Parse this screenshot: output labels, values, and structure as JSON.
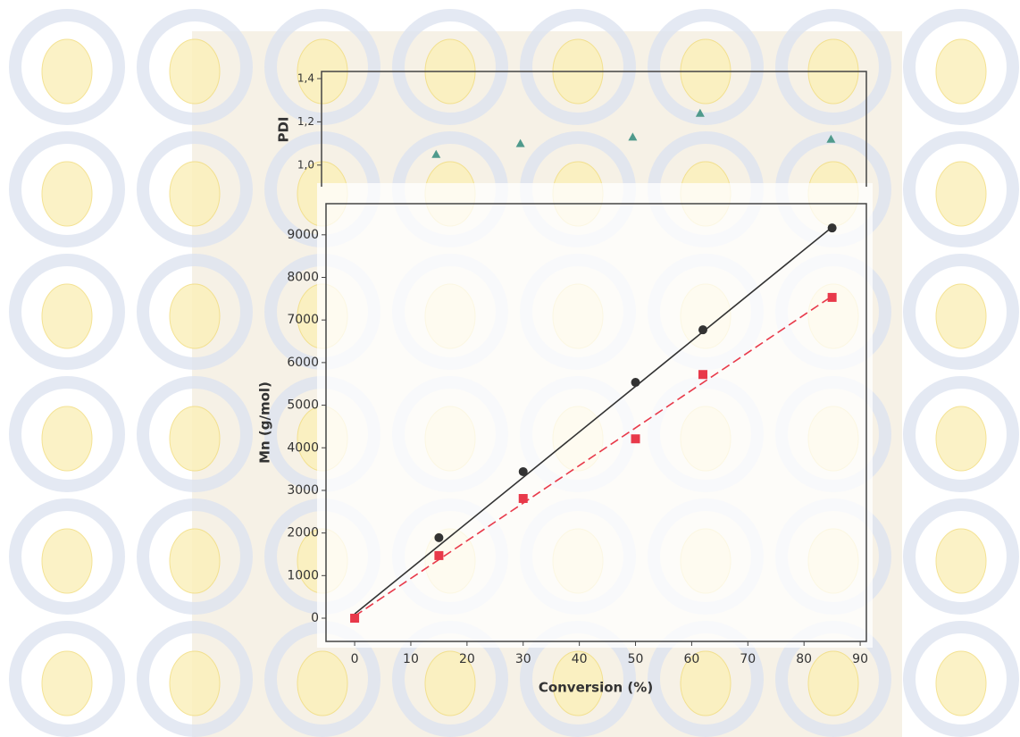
{
  "chart_data": [
    {
      "type": "scatter",
      "ylabel": "PDI",
      "xlim": [
        -5.9,
        91.1
      ],
      "ylim": [
        0.9,
        1.433
      ],
      "yticks": [
        {
          "value": 1.0,
          "label": "1,0"
        },
        {
          "value": 1.2,
          "label": "1,2"
        },
        {
          "value": 1.4,
          "label": "1,4"
        }
      ],
      "series": [
        {
          "color": "#4f9a8c",
          "marker": "triangle",
          "x": [
            14.5,
            29.5,
            49.5,
            61.5,
            84.8
          ],
          "values": [
            1.05,
            1.1,
            1.13,
            1.24,
            1.12
          ]
        }
      ]
    },
    {
      "type": "scatter",
      "xlabel": "Conversion (%)",
      "ylabel": "Mn (g/mol)",
      "xlim": [
        -5.1,
        91.1
      ],
      "ylim": [
        -545,
        9730
      ],
      "xticks": [
        0,
        10,
        20,
        30,
        40,
        50,
        60,
        70,
        80,
        90
      ],
      "yticks": [
        0,
        1000,
        2000,
        3000,
        4000,
        5000,
        6000,
        7000,
        8000,
        9000
      ],
      "series": [
        {
          "color": "#333333",
          "marker": "circle",
          "x": [
            15,
            30,
            50,
            62,
            85
          ],
          "values": [
            1890,
            3440,
            5535,
            6770,
            9160
          ]
        },
        {
          "color": "#e8394a",
          "marker": "square",
          "x": [
            0,
            15,
            30,
            50,
            62,
            85
          ],
          "values": [
            0,
            1470,
            2810,
            4210,
            5720,
            7530
          ]
        }
      ],
      "trendlines": [
        {
          "color": "#333333",
          "dash": false,
          "x": [
            0,
            85
          ],
          "values": [
            100,
            9180
          ]
        },
        {
          "color": "#e8394a",
          "dash": true,
          "x": [
            0,
            85
          ],
          "values": [
            50,
            7560
          ]
        }
      ]
    }
  ]
}
